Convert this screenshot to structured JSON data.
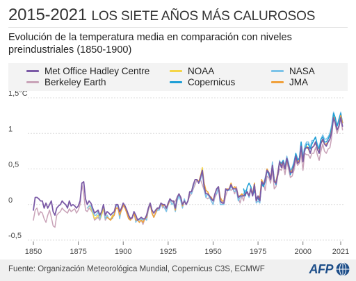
{
  "header": {
    "title_main": "2015-2021",
    "title_rest": "Los siete años más calurosos",
    "subtitle": "Evolución de la temperatura media en comparación con niveles preindustriales (1850-1900)"
  },
  "legend": [
    {
      "label": "Met Office Hadley Centre",
      "color": "#7b5aa6"
    },
    {
      "label": "NOAA",
      "color": "#f5d547"
    },
    {
      "label": "NASA",
      "color": "#7cc3e8"
    },
    {
      "label": "Berkeley Earth",
      "color": "#c9a3b8"
    },
    {
      "label": "Copernicus",
      "color": "#1e9fd6"
    },
    {
      "label": "JMA",
      "color": "#f0a03a"
    }
  ],
  "footer": {
    "source": "Fuente: Organización Meteorológica Mundial, Copernicus C3S, ECMWF",
    "logo": "AFP"
  },
  "chart_data": {
    "type": "line",
    "title": "",
    "xlabel": "",
    "ylabel": "",
    "unit": "°C",
    "xlim": [
      1850,
      2021
    ],
    "ylim": [
      -0.5,
      1.5
    ],
    "x_ticks": [
      1850,
      1875,
      1900,
      1925,
      1950,
      1975,
      2000,
      2021
    ],
    "y_ticks": [
      {
        "value": -0.5,
        "label": "-0,5"
      },
      {
        "value": 0,
        "label": "0"
      },
      {
        "value": 0.5,
        "label": "0,5"
      },
      {
        "value": 1,
        "label": "1"
      },
      {
        "value": 1.5,
        "label": "1,5°C"
      }
    ],
    "grid": "horizontal",
    "series": [
      {
        "name": "Berkeley Earth",
        "color": "#c9a3b8",
        "start_year": 1850,
        "values": [
          -0.22,
          -0.08,
          -0.05,
          -0.15,
          -0.1,
          -0.12,
          -0.2,
          -0.25,
          -0.15,
          -0.08,
          -0.18,
          -0.3,
          -0.32,
          -0.15,
          -0.12,
          -0.1,
          -0.05,
          -0.08,
          -0.1,
          -0.12,
          -0.06,
          -0.1,
          -0.08,
          -0.06,
          -0.12,
          -0.08,
          0.0,
          0.28,
          0.15,
          -0.08,
          -0.1,
          -0.05,
          -0.08,
          -0.12,
          -0.22,
          -0.2,
          -0.18,
          -0.22,
          -0.15,
          -0.05,
          -0.22,
          -0.18,
          -0.2,
          -0.22,
          -0.18,
          -0.15,
          -0.05,
          -0.05,
          -0.12,
          -0.08,
          -0.02,
          -0.05,
          -0.1,
          -0.18,
          -0.2,
          -0.2,
          -0.12,
          -0.15,
          -0.22,
          -0.25,
          -0.22,
          -0.28,
          -0.2,
          -0.22,
          -0.08,
          0.0,
          -0.12,
          -0.18,
          -0.12,
          -0.08,
          -0.05,
          0.02,
          -0.05,
          0.0,
          -0.1,
          0.0,
          0.05,
          0.05,
          0.02,
          0.05,
          0.1,
          0.15,
          0.08,
          0.0,
          0.05,
          0.0,
          0.05,
          0.12,
          0.15,
          0.22,
          0.28,
          0.35,
          0.3,
          0.35,
          0.28,
          0.2,
          0.1,
          0.08,
          0.1,
          0.05,
          0.0,
          0.1,
          0.15,
          0.22,
          0.1,
          0.05,
          0.0,
          0.12,
          0.2,
          0.22,
          0.2,
          0.22,
          0.15,
          0.25,
          0.1,
          0.02,
          0.12,
          0.05,
          0.2,
          0.15,
          0.12,
          0.25,
          0.12,
          0.28,
          0.05,
          0.1,
          0.05,
          0.25,
          0.3,
          0.2,
          0.4,
          0.38,
          0.3,
          0.48,
          0.22,
          0.25,
          0.4,
          0.5,
          0.48,
          0.55,
          0.42,
          0.6,
          0.5,
          0.38,
          0.4,
          0.48,
          0.62,
          0.55,
          0.58,
          0.72,
          0.48,
          0.72,
          0.7,
          0.7,
          0.65,
          0.72,
          0.72,
          0.8,
          0.7,
          0.62,
          0.75,
          0.85,
          0.75,
          0.72,
          0.78,
          0.8,
          0.95,
          1.25,
          1.12,
          1.0,
          1.08,
          1.22,
          1.05
        ]
      },
      {
        "name": "NOAA",
        "color": "#f5d547",
        "start_year": 1880,
        "values": [
          -0.05,
          -0.02,
          -0.05,
          -0.12,
          -0.2,
          -0.18,
          -0.15,
          -0.2,
          -0.15,
          -0.05,
          -0.2,
          -0.15,
          -0.2,
          -0.22,
          -0.15,
          -0.15,
          -0.05,
          -0.05,
          -0.15,
          -0.08,
          0.0,
          -0.05,
          -0.12,
          -0.2,
          -0.22,
          -0.18,
          -0.12,
          -0.22,
          -0.22,
          -0.25,
          -0.22,
          -0.25,
          -0.2,
          -0.18,
          -0.05,
          0.02,
          -0.12,
          -0.18,
          -0.12,
          -0.05,
          -0.05,
          0.02,
          -0.02,
          0.0,
          -0.05,
          0.0,
          0.08,
          0.05,
          0.05,
          -0.08,
          0.1,
          0.15,
          0.1,
          -0.02,
          0.05,
          0.0,
          0.05,
          0.18,
          0.18,
          0.28,
          0.35,
          0.35,
          0.32,
          0.4,
          0.52,
          0.3,
          0.2,
          0.18,
          0.12,
          0.1,
          0.05,
          0.15,
          0.22,
          0.25,
          0.1,
          0.05,
          0.05,
          0.22,
          0.22,
          0.22,
          0.3,
          0.22,
          0.25,
          0.22,
          0.12,
          0.12,
          0.15,
          0.12,
          0.15,
          0.18,
          0.12,
          0.22,
          0.15,
          0.3,
          0.05,
          0.12,
          0.1,
          0.35,
          0.28,
          0.35,
          0.5,
          0.45,
          0.38,
          0.55,
          0.32,
          0.32,
          0.45,
          0.6,
          0.55,
          0.6,
          0.5,
          0.65,
          0.55,
          0.45,
          0.48,
          0.55,
          0.68,
          0.6,
          0.62,
          0.82,
          0.6,
          0.78,
          0.82,
          0.8,
          0.72,
          0.8,
          0.82,
          0.88,
          0.8,
          0.72,
          0.88,
          0.92,
          0.85,
          0.85,
          0.88,
          0.92,
          1.06,
          1.25,
          1.18,
          1.05,
          1.1,
          1.28,
          1.15
        ]
      },
      {
        "name": "NASA",
        "color": "#7cc3e8",
        "start_year": 1880,
        "values": [
          -0.05,
          -0.02,
          -0.02,
          -0.1,
          -0.15,
          -0.15,
          -0.1,
          -0.2,
          -0.1,
          0.0,
          -0.2,
          -0.15,
          -0.2,
          -0.2,
          -0.2,
          -0.12,
          -0.02,
          -0.02,
          -0.2,
          -0.05,
          0.0,
          -0.02,
          -0.12,
          -0.2,
          -0.22,
          -0.18,
          -0.1,
          -0.25,
          -0.2,
          -0.22,
          -0.2,
          -0.22,
          -0.2,
          -0.22,
          -0.05,
          0.02,
          -0.12,
          -0.18,
          -0.12,
          -0.08,
          -0.08,
          0.0,
          -0.02,
          -0.05,
          -0.1,
          0.0,
          0.08,
          0.0,
          0.02,
          -0.1,
          0.05,
          0.12,
          0.05,
          -0.05,
          0.08,
          0.0,
          0.05,
          0.18,
          0.15,
          0.25,
          0.35,
          0.35,
          0.3,
          0.35,
          0.45,
          0.22,
          0.1,
          0.15,
          0.1,
          0.05,
          0.0,
          0.15,
          0.15,
          0.25,
          0.0,
          0.0,
          0.0,
          0.2,
          0.2,
          0.2,
          0.25,
          0.22,
          0.18,
          0.2,
          0.05,
          0.1,
          0.12,
          0.15,
          0.2,
          0.18,
          0.1,
          0.22,
          0.15,
          0.3,
          0.02,
          0.05,
          0.02,
          0.32,
          0.28,
          0.38,
          0.5,
          0.42,
          0.35,
          0.6,
          0.35,
          0.3,
          0.45,
          0.62,
          0.55,
          0.62,
          0.55,
          0.68,
          0.58,
          0.48,
          0.52,
          0.6,
          0.72,
          0.65,
          0.62,
          0.88,
          0.68,
          0.82,
          0.88,
          0.88,
          0.8,
          0.9,
          0.9,
          0.95,
          0.85,
          0.8,
          0.92,
          0.98,
          0.92,
          0.92,
          0.95,
          1.0,
          1.12,
          1.3,
          1.22,
          1.1,
          1.18,
          1.3,
          1.15
        ]
      },
      {
        "name": "Copernicus",
        "color": "#1e9fd6",
        "start_year": 1967,
        "values": [
          0.22,
          0.12,
          0.25,
          0.3,
          0.25,
          0.12,
          0.2,
          0.1,
          0.08,
          0.05,
          0.3,
          0.25,
          0.32,
          0.48,
          0.42,
          0.35,
          0.55,
          0.35,
          0.28,
          0.45,
          0.6,
          0.58,
          0.62,
          0.5,
          0.65,
          0.58,
          0.42,
          0.5,
          0.58,
          0.72,
          0.62,
          0.65,
          0.88,
          0.65,
          0.75,
          0.85,
          0.85,
          0.78,
          0.85,
          0.9,
          0.95,
          0.82,
          0.78,
          0.92,
          0.95,
          0.88,
          0.88,
          0.92,
          0.98,
          1.08,
          1.28,
          1.22,
          1.1,
          1.2,
          1.28,
          1.15
        ]
      },
      {
        "name": "JMA",
        "color": "#f0a03a",
        "start_year": 1891,
        "values": [
          -0.18,
          -0.2,
          -0.22,
          -0.18,
          -0.15,
          -0.05,
          -0.05,
          -0.15,
          -0.08,
          0.0,
          -0.05,
          -0.12,
          -0.2,
          -0.22,
          -0.18,
          -0.12,
          -0.22,
          -0.22,
          -0.25,
          -0.22,
          -0.25,
          -0.2,
          -0.18,
          -0.05,
          0.02,
          -0.12,
          -0.18,
          -0.12,
          -0.05,
          -0.05,
          0.02,
          -0.02,
          0.0,
          -0.05,
          0.0,
          0.08,
          0.05,
          0.05,
          -0.08,
          0.1,
          0.15,
          0.1,
          -0.02,
          0.05,
          0.0,
          0.05,
          0.18,
          0.18,
          0.28,
          0.35,
          0.35,
          0.32,
          0.4,
          0.48,
          0.3,
          0.2,
          0.18,
          0.12,
          0.1,
          0.05,
          0.15,
          0.22,
          0.25,
          0.1,
          0.05,
          0.05,
          0.22,
          0.22,
          0.22,
          0.3,
          0.22,
          0.25,
          0.22,
          0.12,
          0.12,
          0.15,
          0.12,
          0.15,
          0.18,
          0.12,
          0.22,
          0.15,
          0.3,
          0.05,
          0.12,
          0.1,
          0.35,
          0.28,
          0.35,
          0.5,
          0.45,
          0.38,
          0.55,
          0.32,
          0.32,
          0.45,
          0.6,
          0.55,
          0.6,
          0.5,
          0.62,
          0.55,
          0.45,
          0.48,
          0.55,
          0.66,
          0.6,
          0.62,
          0.8,
          0.6,
          0.78,
          0.8,
          0.78,
          0.72,
          0.8,
          0.82,
          0.86,
          0.8,
          0.72,
          0.86,
          0.9,
          0.85,
          0.85,
          0.88,
          0.92,
          1.05,
          1.22,
          1.15,
          1.05,
          1.1,
          1.25,
          1.15
        ]
      },
      {
        "name": "Met Office Hadley Centre",
        "color": "#7b5aa6",
        "start_year": 1850,
        "values": [
          -0.08,
          0.1,
          0.1,
          0.08,
          0.05,
          0.05,
          -0.05,
          0.02,
          -0.05,
          0.0,
          0.05,
          -0.1,
          -0.15,
          -0.05,
          -0.02,
          0.0,
          0.05,
          0.02,
          0.0,
          -0.05,
          0.05,
          -0.02,
          0.0,
          -0.02,
          -0.05,
          -0.02,
          0.05,
          0.3,
          0.32,
          0.08,
          0.0,
          0.05,
          0.02,
          -0.05,
          -0.12,
          -0.1,
          -0.08,
          -0.15,
          -0.1,
          0.0,
          -0.15,
          -0.1,
          -0.12,
          -0.15,
          -0.12,
          -0.1,
          0.0,
          0.0,
          -0.1,
          -0.05,
          0.02,
          -0.02,
          -0.08,
          -0.15,
          -0.2,
          -0.18,
          -0.1,
          -0.15,
          -0.22,
          -0.2,
          -0.18,
          -0.2,
          -0.2,
          -0.15,
          -0.05,
          0.02,
          -0.08,
          -0.12,
          -0.08,
          -0.05,
          -0.05,
          0.02,
          0.0,
          0.0,
          -0.05,
          0.02,
          0.08,
          0.05,
          0.05,
          -0.05,
          0.1,
          0.15,
          0.1,
          0.0,
          0.05,
          0.0,
          0.05,
          0.18,
          0.18,
          0.28,
          0.35,
          0.35,
          0.3,
          0.38,
          0.48,
          0.25,
          0.15,
          0.15,
          0.12,
          0.08,
          0.05,
          0.15,
          0.22,
          0.25,
          0.05,
          0.02,
          0.02,
          0.22,
          0.2,
          0.22,
          0.28,
          0.22,
          0.22,
          0.22,
          0.1,
          0.12,
          0.12,
          0.12,
          0.15,
          0.18,
          0.12,
          0.22,
          0.12,
          0.28,
          0.05,
          0.12,
          0.05,
          0.32,
          0.28,
          0.35,
          0.48,
          0.45,
          0.35,
          0.55,
          0.32,
          0.3,
          0.42,
          0.6,
          0.52,
          0.6,
          0.5,
          0.65,
          0.55,
          0.45,
          0.45,
          0.55,
          0.68,
          0.58,
          0.6,
          0.82,
          0.6,
          0.78,
          0.8,
          0.8,
          0.72,
          0.8,
          0.82,
          0.88,
          0.78,
          0.72,
          0.86,
          0.92,
          0.85,
          0.82,
          0.88,
          0.92,
          1.02,
          1.22,
          1.15,
          1.05,
          1.1,
          1.22,
          1.1
        ]
      }
    ]
  }
}
